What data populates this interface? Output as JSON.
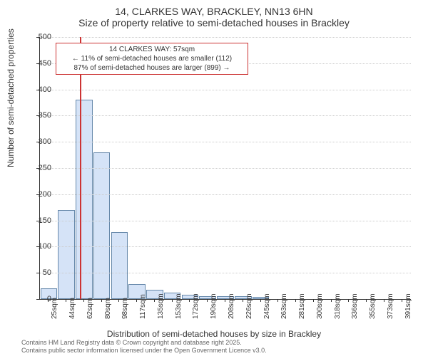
{
  "title_line1": "14, CLARKES WAY, BRACKLEY, NN13 6HN",
  "title_line2": "Size of property relative to semi-detached houses in Brackley",
  "y_axis_label": "Number of semi-detached properties",
  "x_axis_label": "Distribution of semi-detached houses by size in Brackley",
  "chart": {
    "type": "histogram",
    "ylim": [
      0,
      500
    ],
    "ytick_step": 50,
    "background_color": "#ffffff",
    "grid_color": "#cccccc",
    "bar_fill": "#d5e3f7",
    "bar_border": "#6688aa",
    "marker_color": "#cc3333",
    "textbox_border": "#cc3333",
    "x_categories": [
      "25sqm",
      "44sqm",
      "62sqm",
      "80sqm",
      "98sqm",
      "117sqm",
      "135sqm",
      "153sqm",
      "172sqm",
      "190sqm",
      "208sqm",
      "226sqm",
      "245sqm",
      "263sqm",
      "281sqm",
      "300sqm",
      "318sqm",
      "336sqm",
      "355sqm",
      "373sqm",
      "391sqm"
    ],
    "values": [
      20,
      170,
      380,
      280,
      128,
      28,
      18,
      12,
      8,
      6,
      6,
      5,
      4,
      0,
      0,
      0,
      0,
      0,
      0,
      0,
      0
    ],
    "marker_index": 1.75,
    "bar_width": 0.95
  },
  "textbox": {
    "line1": "14 CLARKES WAY: 57sqm",
    "line2": "← 11% of semi-detached houses are smaller (112)",
    "line3": "87% of semi-detached houses are larger (899) →"
  },
  "footer_line1": "Contains HM Land Registry data © Crown copyright and database right 2025.",
  "footer_line2": "Contains public sector information licensed under the Open Government Licence v3.0."
}
